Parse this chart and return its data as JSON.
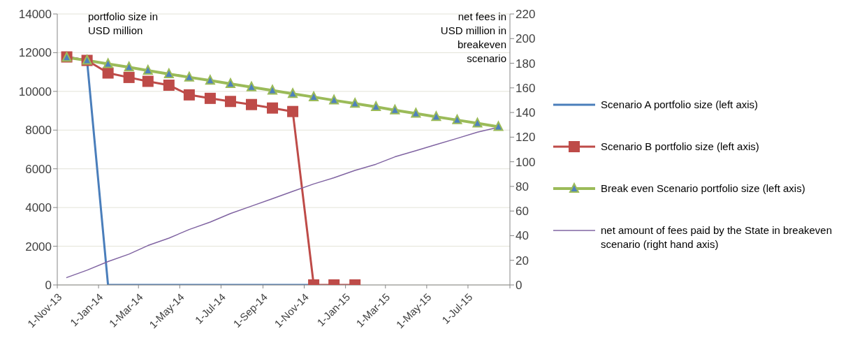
{
  "chart_data": {
    "type": "line",
    "ylabel": "portfolio size in USD million",
    "y2label": "net fees  in USD million in breakeven scenario",
    "x": [
      "2013-11-15",
      "2013-12-15",
      "2014-01-15",
      "2014-02-15",
      "2014-03-15",
      "2014-04-15",
      "2014-05-15",
      "2014-06-15",
      "2014-07-15",
      "2014-08-15",
      "2014-09-15",
      "2014-10-15",
      "2014-11-15",
      "2014-12-15",
      "2015-01-15",
      "2015-02-15",
      "2015-03-15",
      "2015-04-15",
      "2015-05-15",
      "2015-06-15",
      "2015-07-15",
      "2015-08-15"
    ],
    "series": [
      {
        "name": "Scenario A portfolio size (left axis)",
        "color": "#4a7ebb",
        "marker": "none",
        "values": [
          11780,
          11600,
          0,
          0,
          0,
          0,
          0,
          0,
          0,
          0,
          0,
          0,
          0,
          null,
          null,
          null,
          null,
          null,
          null,
          null,
          null,
          null
        ]
      },
      {
        "name": "Scenario B portfolio size (left axis)",
        "color": "#be4b48",
        "marker": "square",
        "values": [
          11780,
          11600,
          10950,
          10720,
          10520,
          10320,
          9820,
          9640,
          9480,
          9320,
          9140,
          8960,
          0,
          0,
          0,
          null,
          null,
          null,
          null,
          null,
          null,
          null
        ]
      },
      {
        "name": "Break even Scenario portfolio size (left axis)",
        "color": "#9bbb59",
        "marker": "triangle",
        "values": [
          11750,
          11600,
          11420,
          11250,
          11080,
          10900,
          10730,
          10560,
          10390,
          10220,
          10050,
          9880,
          9710,
          9540,
          9370,
          9200,
          9030,
          8860,
          8690,
          8520,
          8350,
          8170
        ]
      },
      {
        "name": "net amount of fees paid by the State in breakeven scenario (right hand axis)",
        "color": "#8064a2",
        "marker": "none",
        "axis": "y2",
        "values": [
          6,
          12,
          19,
          25,
          32,
          38,
          45,
          51,
          58,
          64,
          70,
          76,
          82,
          87,
          93,
          98,
          104,
          109,
          114,
          119,
          124,
          128
        ]
      }
    ],
    "xlim": [
      "2013-11-01",
      "2015-09-01"
    ],
    "xticks": [
      {
        "value": "2013-11-01",
        "label": "1-Nov-13"
      },
      {
        "value": "2014-01-01",
        "label": "1-Jan-14"
      },
      {
        "value": "2014-03-01",
        "label": "1-Mar-14"
      },
      {
        "value": "2014-05-01",
        "label": "1-May-14"
      },
      {
        "value": "2014-07-01",
        "label": "1-Jul-14"
      },
      {
        "value": "2014-09-01",
        "label": "1-Sep-14"
      },
      {
        "value": "2014-11-01",
        "label": "1-Nov-14"
      },
      {
        "value": "2015-01-01",
        "label": "1-Jan-15"
      },
      {
        "value": "2015-03-01",
        "label": "1-Mar-15"
      },
      {
        "value": "2015-05-01",
        "label": "1-May-15"
      },
      {
        "value": "2015-07-01",
        "label": "1-Jul-15"
      },
      {
        "value": "2015-09-01",
        "label": null
      }
    ],
    "ylim": [
      0,
      14000
    ],
    "yticks": [
      0,
      2000,
      4000,
      6000,
      8000,
      10000,
      12000,
      14000
    ],
    "y2lim": [
      0,
      220
    ],
    "y2ticks": [
      0,
      20,
      40,
      60,
      80,
      100,
      120,
      140,
      160,
      180,
      200,
      220
    ],
    "grid": "y",
    "legend": "right"
  }
}
